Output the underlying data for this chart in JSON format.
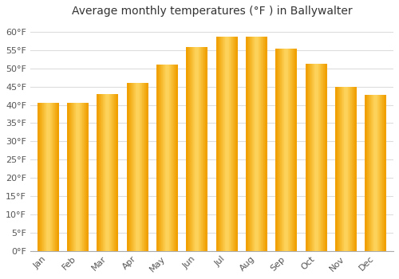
{
  "title": "Average monthly temperatures (°F ) in Ballywalter",
  "months": [
    "Jan",
    "Feb",
    "Mar",
    "Apr",
    "May",
    "Jun",
    "Jul",
    "Aug",
    "Sep",
    "Oct",
    "Nov",
    "Dec"
  ],
  "values": [
    40.6,
    40.6,
    43.0,
    46.0,
    50.9,
    55.8,
    58.6,
    58.6,
    55.4,
    51.1,
    44.8,
    42.6
  ],
  "bar_color_center": "#FFD966",
  "bar_color_edge": "#F0A000",
  "background_color": "#FFFFFF",
  "plot_bg_color": "#FFFFFF",
  "grid_color": "#DDDDDD",
  "ylim": [
    0,
    63
  ],
  "yticks": [
    0,
    5,
    10,
    15,
    20,
    25,
    30,
    35,
    40,
    45,
    50,
    55,
    60
  ],
  "ytick_labels": [
    "0°F",
    "5°F",
    "10°F",
    "15°F",
    "20°F",
    "25°F",
    "30°F",
    "35°F",
    "40°F",
    "45°F",
    "50°F",
    "55°F",
    "60°F"
  ],
  "title_fontsize": 10,
  "tick_fontsize": 8,
  "font_family": "DejaVu Sans"
}
